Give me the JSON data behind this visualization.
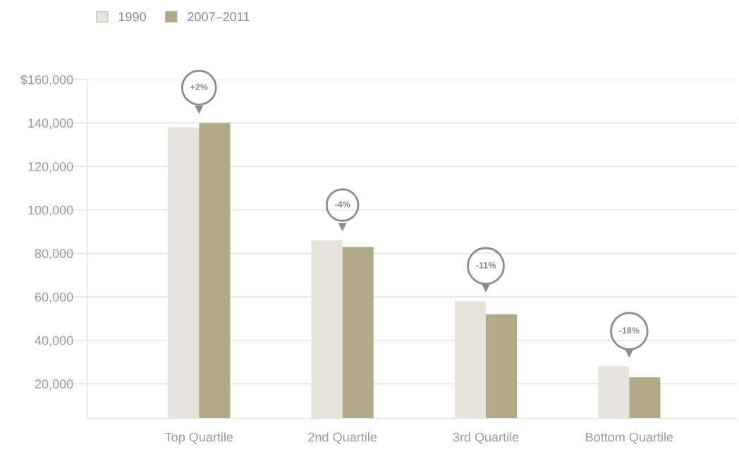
{
  "chart_data": {
    "type": "bar",
    "categories": [
      "Top Quartile",
      "2nd Quartile",
      "3rd Quartile",
      "Bottom Quartile"
    ],
    "series": [
      {
        "name": "1990",
        "color": "#e7e4dc",
        "values": [
          138000,
          86000,
          58000,
          28000
        ]
      },
      {
        "name": "2007–2011",
        "color": "#b3aa88",
        "values": [
          140000,
          83000,
          52000,
          23000
        ]
      }
    ],
    "ylim": [
      4000,
      160000
    ],
    "yticks": [
      {
        "value": 20000,
        "label": "20,000"
      },
      {
        "value": 40000,
        "label": "40,000"
      },
      {
        "value": 60000,
        "label": "60,000"
      },
      {
        "value": 80000,
        "label": "80,000"
      },
      {
        "value": 100000,
        "label": "100,000"
      },
      {
        "value": 120000,
        "label": "120,000"
      },
      {
        "value": 140000,
        "label": "140,000"
      },
      {
        "value": 160000,
        "label": "$160,000"
      }
    ],
    "grid": "y",
    "legend": "top left",
    "annotations": [
      "+2%",
      "-4%",
      "-11%",
      "-18%"
    ]
  }
}
